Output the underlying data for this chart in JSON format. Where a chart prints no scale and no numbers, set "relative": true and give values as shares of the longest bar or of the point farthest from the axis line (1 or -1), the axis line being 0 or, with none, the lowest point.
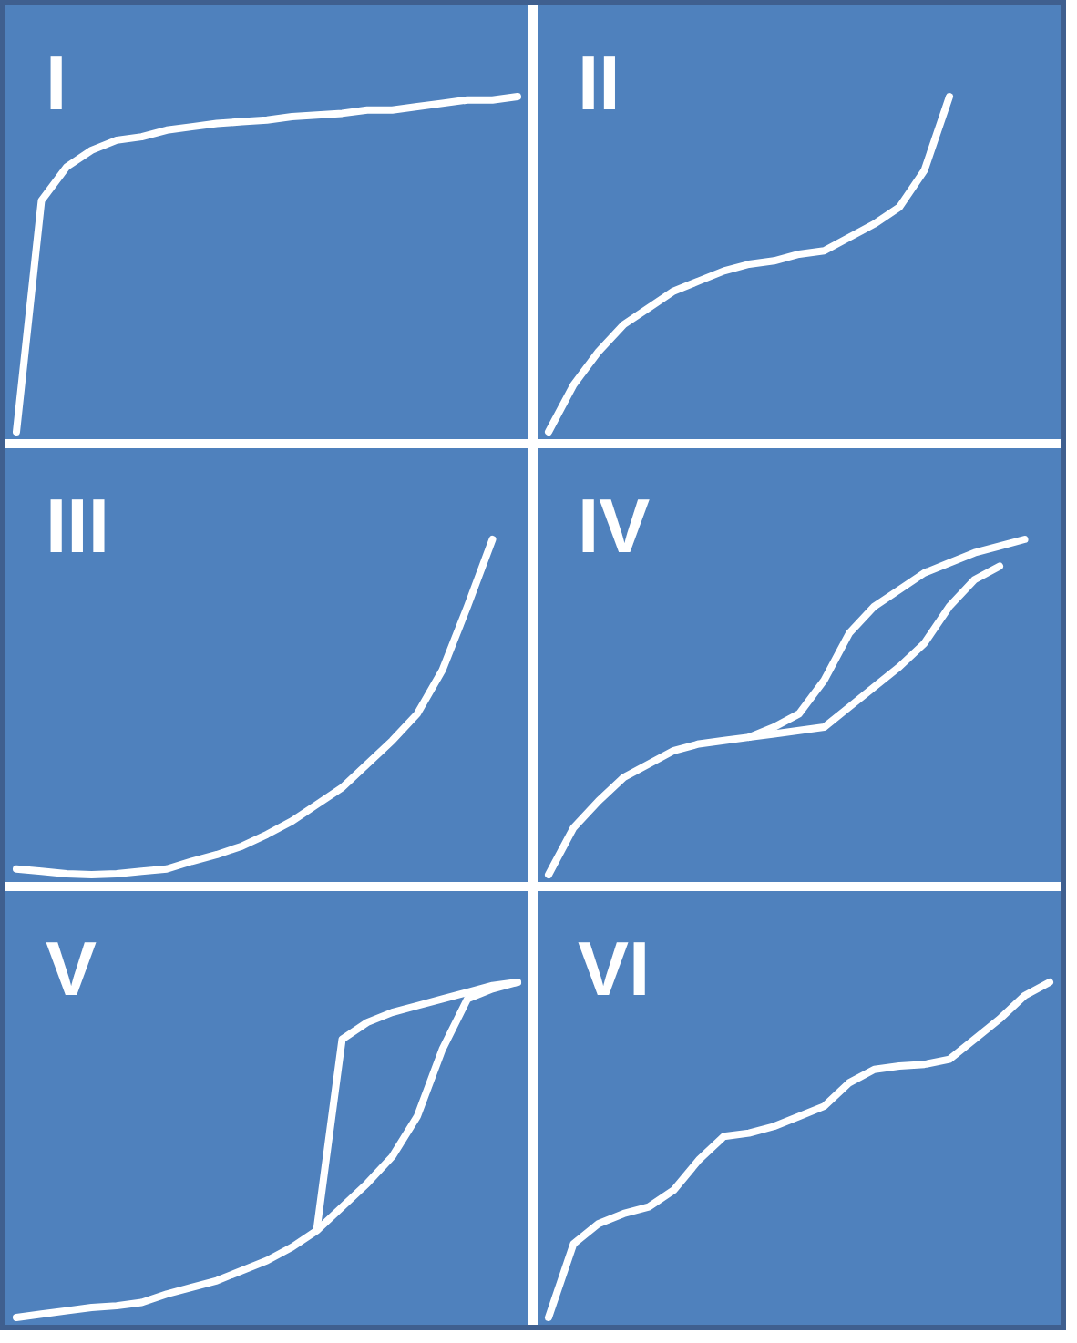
{
  "chart_data": [
    {
      "type": "line",
      "title": "I",
      "relative": true,
      "tick_labels": false,
      "categories": [
        null,
        null,
        null,
        null,
        null,
        null,
        null,
        null,
        null,
        null,
        null,
        null,
        null,
        null,
        null,
        null,
        null,
        null,
        null,
        null,
        null
      ],
      "series": [
        {
          "color": "#ffffff",
          "values": [
            0,
            0.69,
            0.79,
            0.84,
            0.87,
            0.88,
            0.9,
            0.91,
            0.92,
            0.925,
            0.93,
            0.94,
            0.945,
            0.95,
            0.96,
            0.96,
            0.97,
            0.98,
            0.99,
            0.99,
            1.0
          ]
        }
      ]
    },
    {
      "type": "line",
      "title": "II",
      "relative": true,
      "tick_labels": false,
      "categories": [
        null,
        null,
        null,
        null,
        null,
        null,
        null,
        null,
        null,
        null,
        null,
        null,
        null,
        null,
        null,
        null,
        null,
        null,
        null,
        null,
        null
      ],
      "series": [
        {
          "color": "#ffffff",
          "values": [
            0,
            0.14,
            0.24,
            0.32,
            0.37,
            0.42,
            0.45,
            0.48,
            0.5,
            0.51,
            0.53,
            0.54,
            0.58,
            0.62,
            0.67,
            0.78,
            1.0,
            null,
            null,
            null,
            null
          ]
        }
      ]
    },
    {
      "type": "line",
      "title": "III",
      "relative": true,
      "tick_labels": false,
      "categories": [
        null,
        null,
        null,
        null,
        null,
        null,
        null,
        null,
        null,
        null,
        null,
        null,
        null,
        null,
        null,
        null,
        null,
        null,
        null,
        null,
        null
      ],
      "series": [
        {
          "color": "#ffffff",
          "values": [
            0.017,
            0.01,
            0.003,
            0,
            0.003,
            0.01,
            0.017,
            0.04,
            0.06,
            0.085,
            0.12,
            0.16,
            0.21,
            0.26,
            0.33,
            0.4,
            0.48,
            0.61,
            0.8,
            1.0,
            null
          ]
        }
      ]
    },
    {
      "type": "line",
      "title": "IV",
      "relative": true,
      "tick_labels": false,
      "categories": [
        null,
        null,
        null,
        null,
        null,
        null,
        null,
        null,
        null,
        null,
        null,
        null,
        null,
        null,
        null,
        null,
        null,
        null,
        null,
        null,
        null
      ],
      "series": [
        {
          "color": "#ffffff",
          "values": [
            0,
            0.14,
            0.22,
            0.29,
            0.33,
            0.37,
            0.39,
            0.4,
            0.41,
            0.42,
            0.43,
            0.44,
            0.5,
            0.56,
            0.62,
            0.69,
            0.8,
            0.88,
            0.92,
            null,
            null
          ]
        },
        {
          "color": "#ffffff",
          "values": [
            null,
            null,
            null,
            null,
            null,
            null,
            null,
            null,
            0.41,
            0.44,
            0.48,
            0.58,
            0.72,
            0.8,
            0.85,
            0.9,
            0.93,
            0.96,
            0.98,
            1.0,
            null
          ]
        }
      ]
    },
    {
      "type": "line",
      "title": "V",
      "relative": true,
      "tick_labels": false,
      "categories": [
        null,
        null,
        null,
        null,
        null,
        null,
        null,
        null,
        null,
        null,
        null,
        null,
        null,
        null,
        null,
        null,
        null,
        null,
        null,
        null,
        null
      ],
      "series": [
        {
          "color": "#ffffff",
          "values": [
            0,
            0.01,
            0.02,
            0.03,
            0.035,
            0.045,
            0.07,
            0.09,
            0.11,
            0.14,
            0.17,
            0.21,
            0.26,
            0.33,
            0.4,
            0.48,
            0.6,
            0.8,
            0.95,
            0.98,
            1.0
          ]
        },
        {
          "color": "#ffffff",
          "values": [
            null,
            null,
            null,
            null,
            null,
            null,
            null,
            null,
            null,
            null,
            null,
            null,
            0.27,
            0.83,
            0.88,
            0.91,
            0.93,
            0.95,
            0.97,
            0.99,
            1.0
          ]
        }
      ]
    },
    {
      "type": "line",
      "title": "VI",
      "relative": true,
      "tick_labels": false,
      "categories": [
        null,
        null,
        null,
        null,
        null,
        null,
        null,
        null,
        null,
        null,
        null,
        null,
        null,
        null,
        null,
        null,
        null,
        null,
        null,
        null,
        null
      ],
      "series": [
        {
          "color": "#ffffff",
          "values": [
            0,
            0.22,
            0.28,
            0.31,
            0.33,
            0.38,
            0.47,
            0.54,
            0.55,
            0.57,
            0.6,
            0.63,
            0.7,
            0.74,
            0.75,
            0.755,
            0.77,
            0.83,
            0.89,
            0.96,
            1.0
          ]
        }
      ]
    }
  ]
}
